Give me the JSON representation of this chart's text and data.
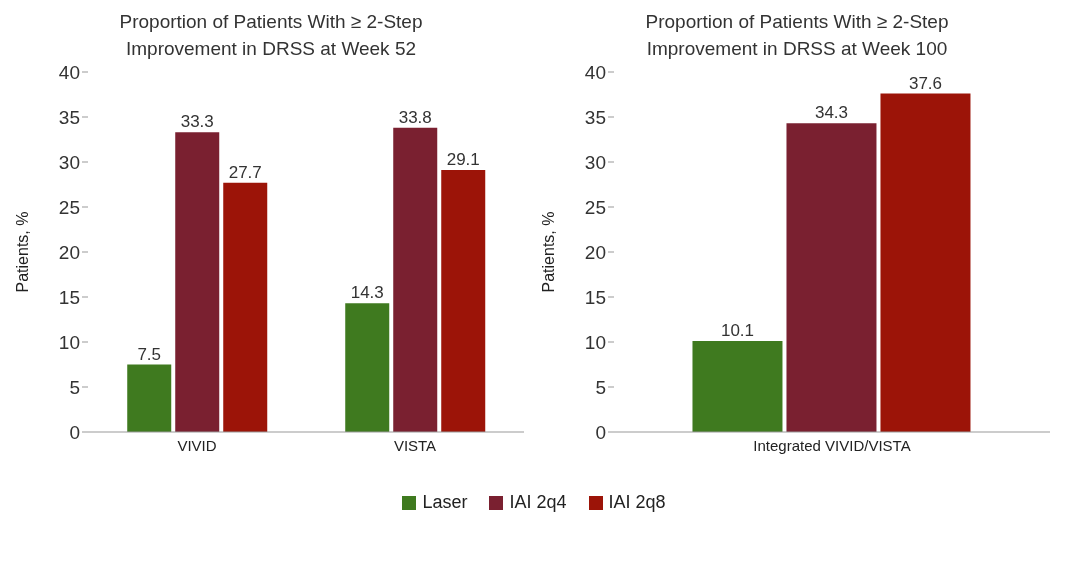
{
  "chart_data": [
    {
      "type": "bar",
      "title": "Proportion of Patients With ≥ 2-Step Improvement in DRSS at Week 52",
      "ylabel": "Patients, %",
      "categories": [
        "VIVID",
        "VISTA"
      ],
      "series": [
        {
          "name": "Laser",
          "color": "#3f7a1f",
          "values": [
            7.5,
            14.3
          ]
        },
        {
          "name": "IAI 2q4",
          "color": "#7a2030",
          "values": [
            33.3,
            33.8
          ]
        },
        {
          "name": "IAI 2q8",
          "color": "#9c1408",
          "values": [
            27.7,
            29.1
          ]
        }
      ],
      "ylim": [
        0,
        40
      ],
      "yticks": [
        0,
        5,
        10,
        15,
        20,
        25,
        30,
        35,
        40
      ],
      "grid": false,
      "data_labels": true,
      "legend": "bottom"
    },
    {
      "type": "bar",
      "title": "Proportion of Patients With ≥ 2-Step Improvement in DRSS at Week 100",
      "ylabel": "Patients, %",
      "categories": [
        "Integrated VIVID/VISTA"
      ],
      "series": [
        {
          "color": "#3f7a1f",
          "values": [
            10.1
          ]
        },
        {
          "color": "#7a2030",
          "values": [
            34.3
          ]
        },
        {
          "color": "#9c1408",
          "values": [
            37.6
          ]
        }
      ],
      "ylim": [
        0,
        40
      ],
      "yticks": [
        0,
        5,
        10,
        15,
        20,
        25,
        30,
        35,
        40
      ],
      "grid": false,
      "data_labels": true
    }
  ]
}
